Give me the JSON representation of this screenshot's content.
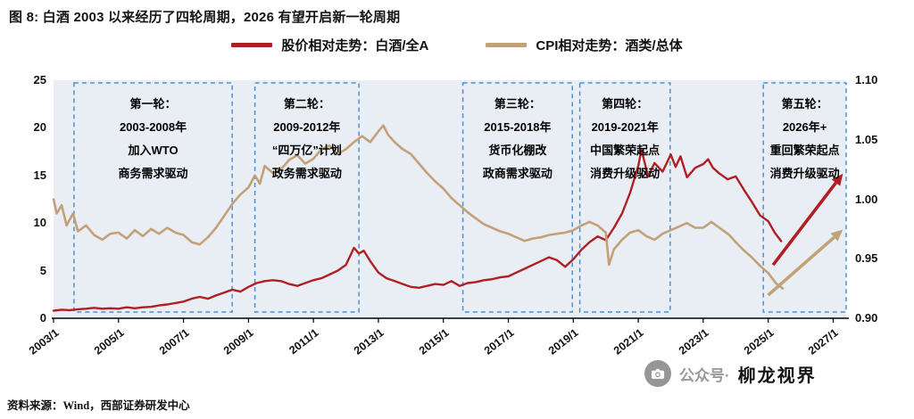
{
  "header": {
    "title": "图 8: 白酒 2003 以来经历了四轮周期，2026 有望开启新一轮周期"
  },
  "legend": {
    "items": [
      {
        "label": "股价相对走势：白酒/全A",
        "color": "#b01f24"
      },
      {
        "label": "CPI相对走势：酒类/总体",
        "color": "#c3a178"
      }
    ]
  },
  "footer": {
    "source": "资料来源：Wind，西部证券研发中心"
  },
  "watermark": {
    "prefix": "公众号·",
    "name": "柳龙视界",
    "icon": "camera-icon",
    "circle_color": "#969696"
  },
  "chart_data": {
    "type": "line",
    "plot_bg": "#e9eef4",
    "cycle_border": "#4f8fd0",
    "x_axis": {
      "min": 2003.0,
      "max": 2027.4,
      "ticks": [
        "2003/1",
        "2005/1",
        "2007/1",
        "2009/1",
        "2011/1",
        "2013/1",
        "2015/1",
        "2017/1",
        "2019/1",
        "2021/1",
        "2023/1",
        "2025/1",
        "2027/1"
      ]
    },
    "y_left": {
      "min": 0,
      "max": 25,
      "ticks": [
        0,
        5,
        10,
        15,
        20,
        25
      ]
    },
    "y_right": {
      "min": 0.9,
      "max": 1.1,
      "ticks": [
        "0.90",
        "0.95",
        "1.00",
        "1.05",
        "1.10"
      ]
    },
    "series": [
      {
        "id": "stock-relative-line",
        "name": "股价相对走势：白酒/全A",
        "axis": "left",
        "color": "#b01f24",
        "width": 2.4,
        "x": [
          2003.0,
          2003.25,
          2003.5,
          2003.75,
          2004.0,
          2004.25,
          2004.5,
          2004.75,
          2005.0,
          2005.25,
          2005.5,
          2005.75,
          2006.0,
          2006.25,
          2006.5,
          2006.75,
          2007.0,
          2007.25,
          2007.5,
          2007.75,
          2008.0,
          2008.25,
          2008.5,
          2008.75,
          2009.0,
          2009.25,
          2009.5,
          2009.75,
          2010.0,
          2010.25,
          2010.5,
          2010.75,
          2011.0,
          2011.25,
          2011.5,
          2011.75,
          2012.0,
          2012.25,
          2012.4,
          2012.55,
          2012.75,
          2013.0,
          2013.25,
          2013.5,
          2013.75,
          2014.0,
          2014.25,
          2014.5,
          2014.75,
          2015.0,
          2015.25,
          2015.5,
          2015.75,
          2016.0,
          2016.25,
          2016.5,
          2016.75,
          2017.0,
          2017.25,
          2017.5,
          2017.75,
          2018.0,
          2018.25,
          2018.5,
          2018.75,
          2019.0,
          2019.25,
          2019.5,
          2019.75,
          2020.0,
          2020.25,
          2020.5,
          2020.75,
          2021.0,
          2021.1,
          2021.3,
          2021.5,
          2021.75,
          2022.0,
          2022.15,
          2022.3,
          2022.5,
          2022.75,
          2023.0,
          2023.15,
          2023.3,
          2023.5,
          2023.75,
          2024.0,
          2024.25,
          2024.5,
          2024.75,
          2025.0,
          2025.2,
          2025.4
        ],
        "y": [
          0.8,
          0.9,
          0.85,
          0.95,
          1.0,
          1.1,
          1.0,
          1.05,
          1.0,
          1.15,
          1.05,
          1.15,
          1.2,
          1.35,
          1.45,
          1.6,
          1.75,
          2.05,
          2.25,
          2.05,
          2.4,
          2.7,
          3.0,
          2.8,
          3.3,
          3.7,
          3.9,
          4.0,
          3.9,
          3.6,
          3.4,
          3.7,
          4.0,
          4.2,
          4.6,
          5.0,
          5.6,
          7.4,
          6.8,
          7.1,
          6.0,
          4.8,
          4.2,
          3.9,
          3.6,
          3.3,
          3.2,
          3.4,
          3.6,
          3.5,
          3.9,
          3.4,
          3.7,
          3.8,
          4.0,
          4.1,
          4.3,
          4.4,
          4.8,
          5.2,
          5.6,
          6.0,
          6.4,
          6.1,
          5.4,
          6.2,
          7.2,
          8.0,
          8.6,
          8.2,
          9.5,
          11.0,
          13.2,
          16.0,
          17.7,
          14.9,
          16.3,
          15.4,
          17.2,
          15.9,
          17.0,
          14.8,
          15.8,
          16.2,
          16.7,
          15.8,
          15.2,
          14.6,
          14.9,
          13.5,
          12.2,
          10.8,
          10.2,
          9.0,
          8.1
        ]
      },
      {
        "id": "cpi-relative-line",
        "name": "CPI相对走势：酒类/总体",
        "axis": "right",
        "color": "#c3a178",
        "width": 2.6,
        "x": [
          2003.0,
          2003.1,
          2003.25,
          2003.4,
          2003.6,
          2003.75,
          2004.0,
          2004.25,
          2004.5,
          2004.75,
          2005.0,
          2005.25,
          2005.5,
          2005.75,
          2006.0,
          2006.25,
          2006.5,
          2006.75,
          2007.0,
          2007.25,
          2007.5,
          2007.75,
          2008.0,
          2008.25,
          2008.5,
          2008.75,
          2009.0,
          2009.2,
          2009.35,
          2009.5,
          2009.75,
          2010.0,
          2010.25,
          2010.5,
          2010.75,
          2011.0,
          2011.25,
          2011.5,
          2011.75,
          2012.0,
          2012.25,
          2012.5,
          2012.75,
          2013.0,
          2013.15,
          2013.3,
          2013.5,
          2013.75,
          2014.0,
          2014.25,
          2014.5,
          2014.75,
          2015.0,
          2015.25,
          2015.5,
          2015.75,
          2016.0,
          2016.25,
          2016.5,
          2016.75,
          2017.0,
          2017.25,
          2017.5,
          2017.75,
          2018.0,
          2018.25,
          2018.5,
          2018.75,
          2019.0,
          2019.25,
          2019.5,
          2019.75,
          2020.0,
          2020.1,
          2020.25,
          2020.5,
          2020.75,
          2021.0,
          2021.25,
          2021.5,
          2021.75,
          2022.0,
          2022.25,
          2022.5,
          2022.75,
          2023.0,
          2023.25,
          2023.4,
          2023.6,
          2023.8,
          2024.0,
          2024.25,
          2024.5,
          2024.75,
          2025.0,
          2025.25,
          2025.45
        ],
        "y": [
          1.0,
          0.988,
          0.995,
          0.978,
          0.988,
          0.973,
          0.978,
          0.97,
          0.966,
          0.971,
          0.972,
          0.967,
          0.974,
          0.969,
          0.975,
          0.971,
          0.976,
          0.972,
          0.97,
          0.964,
          0.962,
          0.968,
          0.976,
          0.986,
          0.996,
          1.004,
          1.01,
          1.02,
          1.013,
          1.028,
          1.022,
          1.025,
          1.033,
          1.037,
          1.03,
          1.034,
          1.042,
          1.045,
          1.038,
          1.042,
          1.048,
          1.053,
          1.048,
          1.057,
          1.062,
          1.054,
          1.048,
          1.042,
          1.038,
          1.03,
          1.022,
          1.015,
          1.009,
          1.001,
          0.995,
          0.989,
          0.984,
          0.979,
          0.976,
          0.973,
          0.971,
          0.968,
          0.965,
          0.967,
          0.968,
          0.97,
          0.971,
          0.972,
          0.974,
          0.978,
          0.981,
          0.978,
          0.972,
          0.945,
          0.958,
          0.966,
          0.972,
          0.974,
          0.969,
          0.966,
          0.971,
          0.974,
          0.977,
          0.98,
          0.976,
          0.976,
          0.981,
          0.978,
          0.974,
          0.97,
          0.964,
          0.957,
          0.951,
          0.944,
          0.938,
          0.929,
          0.925
        ]
      }
    ],
    "cycles": [
      {
        "x_start": 2003.63,
        "x_end": 2008.5,
        "lines": [
          "第一轮：",
          "2003-2008年",
          "加入WTO",
          "商务需求驱动"
        ]
      },
      {
        "x_start": 2009.2,
        "x_end": 2012.4,
        "lines": [
          "第二轮：",
          "2009-2012年",
          "“四万亿”计划",
          "政务需求驱动"
        ]
      },
      {
        "x_start": 2015.6,
        "x_end": 2018.97,
        "lines": [
          "第三轮：",
          "2015-2018年",
          "货币化棚改",
          "政商需求驱动"
        ]
      },
      {
        "x_start": 2019.2,
        "x_end": 2021.98,
        "lines": [
          "第四轮：",
          "2019-2021年",
          "中国繁荣起点",
          "消费升级驱动"
        ]
      },
      {
        "x_start": 2024.85,
        "x_end": 2027.4,
        "lines": [
          "第五轮：",
          "2026年+",
          "重回繁荣起点",
          "消费升级驱动"
        ]
      }
    ],
    "arrows": [
      {
        "id": "red-forecast-arrow",
        "axis": "left",
        "color": "#b01f24",
        "x1": 2025.15,
        "y1": 5.6,
        "x2": 2027.3,
        "y2": 15.2
      },
      {
        "id": "tan-forecast-arrow",
        "axis": "right",
        "color": "#c3a178",
        "x1": 2025.0,
        "y1": 0.9195,
        "x2": 2027.3,
        "y2": 0.9745
      }
    ]
  }
}
